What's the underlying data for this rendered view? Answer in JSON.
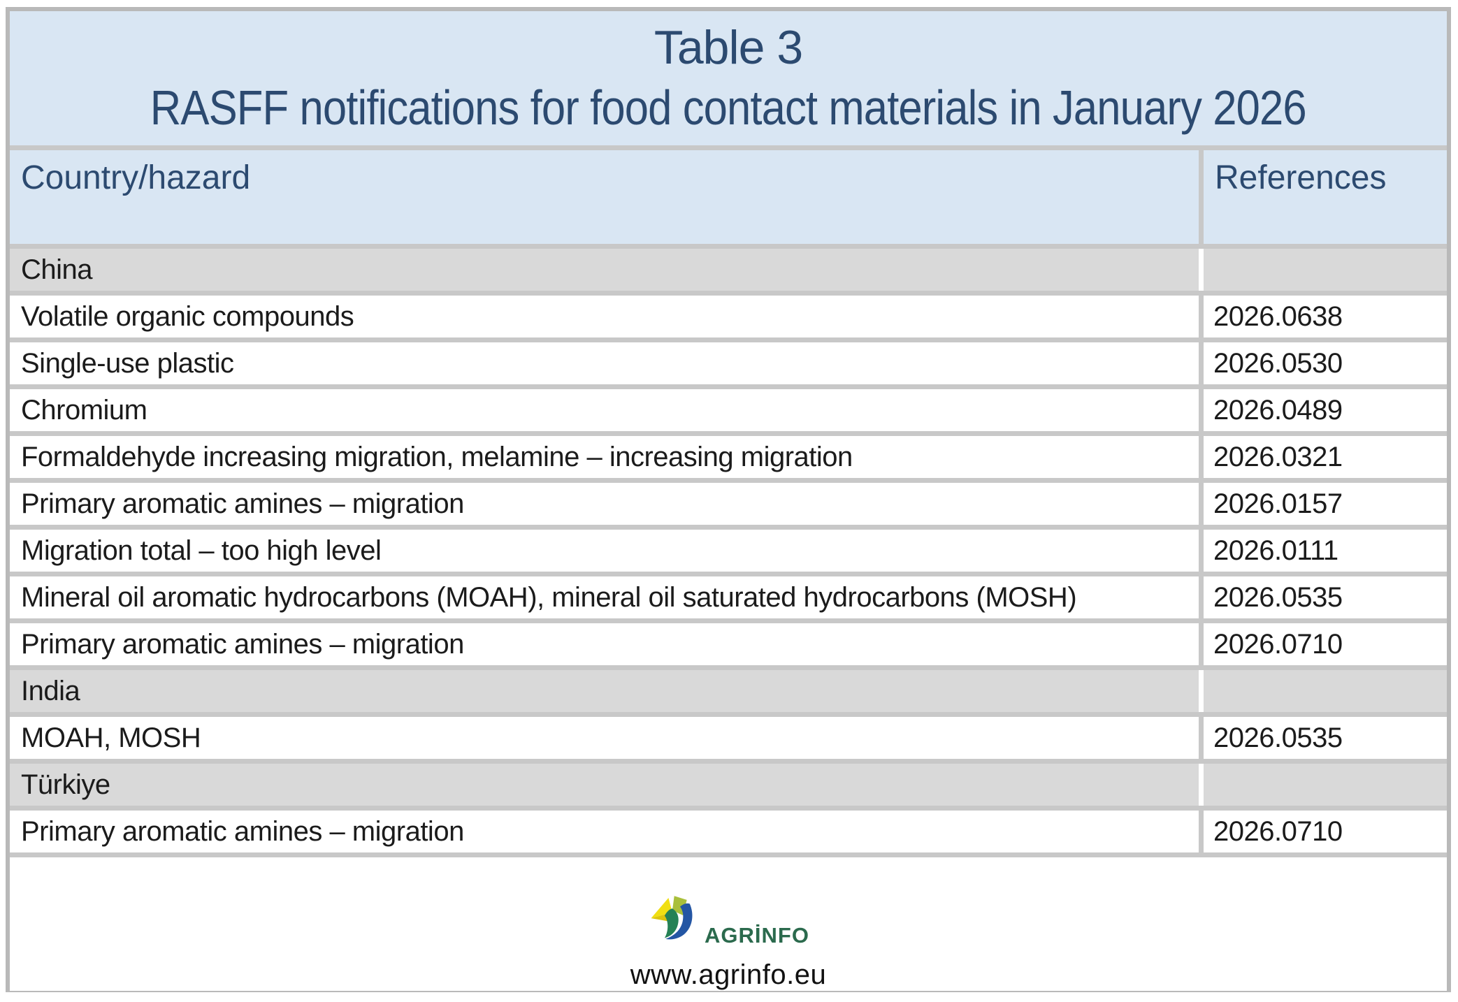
{
  "table": {
    "caption_line1": "Table 3",
    "caption_line2": "RASFF notifications for food contact materials in January 2026",
    "columns": [
      "Country/hazard",
      "References"
    ],
    "rows": [
      {
        "type": "country",
        "label": "China",
        "reference": ""
      },
      {
        "type": "hazard",
        "label": "Volatile organic compounds",
        "reference": "2026.0638"
      },
      {
        "type": "hazard",
        "label": "Single-use plastic",
        "reference": "2026.0530"
      },
      {
        "type": "hazard",
        "label": "Chromium",
        "reference": "2026.0489"
      },
      {
        "type": "hazard",
        "label": "Formaldehyde increasing migration, melamine – increasing migration",
        "reference": "2026.0321"
      },
      {
        "type": "hazard",
        "label": "Primary aromatic amines – migration",
        "reference": "2026.0157"
      },
      {
        "type": "hazard",
        "label": "Migration total – too high level",
        "reference": "2026.0111"
      },
      {
        "type": "hazard",
        "label": "Mineral oil aromatic hydrocarbons (MOAH), mineral oil saturated hydrocarbons (MOSH)",
        "reference": "2026.0535"
      },
      {
        "type": "hazard",
        "label": "Primary aromatic amines – migration",
        "reference": "2026.0710"
      },
      {
        "type": "country",
        "label": "India",
        "reference": ""
      },
      {
        "type": "hazard",
        "label": "MOAH, MOSH",
        "reference": "2026.0535"
      },
      {
        "type": "country",
        "label": "Türkiye",
        "reference": ""
      },
      {
        "type": "hazard",
        "label": "Primary aromatic amines – migration",
        "reference": "2026.0710"
      }
    ]
  },
  "footer": {
    "logo_text": "AGRİNFO",
    "website": "www.agrinfo.eu"
  },
  "colors": {
    "header_bg": "#d9e6f3",
    "header_text": "#2c4a70",
    "country_row_bg": "#d9d9d9",
    "row_bg": "#ffffff",
    "body_text": "#1b1b1b",
    "grid_gap": "#c8c8c8",
    "outer_border": "#b9b9b9",
    "logo_green_text": "#2b6a4d",
    "logo_yellow": "#f0df12",
    "logo_dark_yellow": "#dcc40d",
    "logo_lime": "#a9bf3b",
    "logo_leaf_green": "#258155",
    "logo_blue": "#2456a4"
  }
}
